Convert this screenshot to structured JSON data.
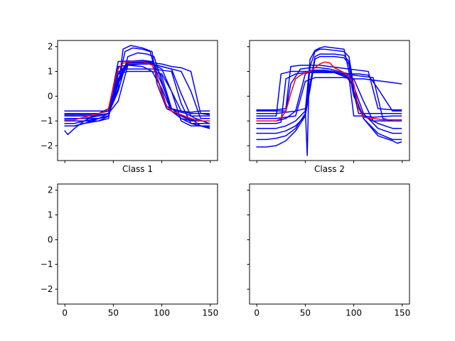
{
  "chart_data": [
    {
      "type": "line",
      "xlabel": "Class 1",
      "ylabel": "",
      "title": "",
      "xlim": [
        -7.5,
        157.5
      ],
      "ylim": [
        -2.6,
        2.25
      ],
      "x_ticks": [
        0,
        50,
        100,
        150
      ],
      "x_ticklabels": [],
      "y_ticks": [
        -2,
        -1,
        0,
        1,
        2
      ],
      "y_ticklabels": [
        "−2",
        "−1",
        "0",
        "1",
        "2"
      ],
      "grid": false,
      "colors": {
        "samples": "#0000ff",
        "mean": "#ff0000"
      },
      "series": [
        {
          "role": "sample",
          "color": "#0000ff",
          "x": [
            0,
            10,
            20,
            35,
            45,
            55,
            65,
            80,
            90,
            100,
            110,
            120,
            130,
            140,
            149
          ],
          "y": [
            -0.6,
            -0.6,
            -0.6,
            -0.6,
            -0.6,
            1.4,
            1.42,
            1.4,
            1.38,
            0.8,
            -0.5,
            -0.6,
            -0.65,
            -0.6,
            -0.6
          ]
        },
        {
          "role": "sample",
          "color": "#0000ff",
          "x": [
            0,
            10,
            20,
            35,
            45,
            55,
            65,
            80,
            90,
            100,
            110,
            120,
            130,
            140,
            149
          ],
          "y": [
            -0.7,
            -0.7,
            -0.7,
            -0.7,
            -0.6,
            0.6,
            1.38,
            1.38,
            1.3,
            1.1,
            0.2,
            -0.6,
            -0.7,
            -0.7,
            -0.7
          ]
        },
        {
          "role": "sample",
          "color": "#0000ff",
          "x": [
            0,
            10,
            20,
            35,
            45,
            55,
            65,
            80,
            90,
            100,
            110,
            120,
            130,
            140,
            149
          ],
          "y": [
            -0.8,
            -0.8,
            -0.8,
            -0.8,
            -0.7,
            -0.2,
            1.25,
            1.3,
            1.3,
            1.2,
            1.1,
            0.1,
            -0.8,
            -0.8,
            -0.8
          ]
        },
        {
          "role": "sample",
          "color": "#0000ff",
          "x": [
            0,
            10,
            20,
            35,
            45,
            55,
            65,
            80,
            90,
            100,
            110,
            120,
            130,
            140,
            149
          ],
          "y": [
            -0.9,
            -0.9,
            -0.9,
            -0.9,
            -0.8,
            0.5,
            1.3,
            1.3,
            1.3,
            1.2,
            1.1,
            1.0,
            0.2,
            -0.9,
            -0.9
          ]
        },
        {
          "role": "sample",
          "color": "#0000ff",
          "x": [
            0,
            10,
            20,
            35,
            45,
            55,
            65,
            80,
            90,
            100,
            110,
            120,
            130,
            140,
            149
          ],
          "y": [
            -1.0,
            -1.0,
            -1.0,
            -1.0,
            -0.9,
            1.2,
            1.25,
            1.2,
            1.0,
            0.3,
            -0.6,
            -0.9,
            -1.0,
            -1.0,
            -1.0
          ]
        },
        {
          "role": "sample",
          "color": "#0000ff",
          "x": [
            0,
            10,
            20,
            35,
            45,
            55,
            65,
            80,
            90,
            100,
            110,
            120,
            130,
            140,
            149
          ],
          "y": [
            -1.1,
            -1.1,
            -1.0,
            -1.0,
            -0.8,
            1.0,
            1.1,
            1.1,
            1.1,
            1.05,
            1.0,
            -0.3,
            -1.1,
            -1.1,
            -1.1
          ]
        },
        {
          "role": "sample",
          "color": "#0000ff",
          "x": [
            0,
            10,
            20,
            35,
            45,
            55,
            65,
            80,
            90,
            100,
            110,
            120,
            130,
            140,
            149
          ],
          "y": [
            -1.2,
            -1.2,
            -1.1,
            -1.0,
            -0.8,
            0.9,
            1.0,
            1.0,
            1.0,
            0.9,
            0.2,
            -1.0,
            -1.2,
            -1.2,
            -1.2
          ]
        },
        {
          "role": "sample",
          "color": "#0000ff",
          "x": [
            0,
            3,
            10,
            20,
            35,
            45,
            55,
            65,
            80,
            90,
            100,
            110,
            120,
            130,
            140,
            149
          ],
          "y": [
            -1.4,
            -1.55,
            -1.3,
            -1.0,
            -0.7,
            -0.5,
            0.7,
            1.4,
            1.45,
            1.4,
            0.5,
            -0.5,
            -0.8,
            -0.9,
            -1.2,
            -1.3
          ]
        },
        {
          "role": "sample",
          "color": "#0000ff",
          "x": [
            0,
            10,
            20,
            35,
            45,
            55,
            62,
            70,
            80,
            88,
            95,
            105,
            115,
            125,
            135,
            149
          ],
          "y": [
            -1.0,
            -1.0,
            -1.0,
            -0.9,
            -0.8,
            0.5,
            1.8,
            1.95,
            1.9,
            1.8,
            0.8,
            -0.4,
            -0.6,
            -0.7,
            -0.9,
            -1.1
          ]
        },
        {
          "role": "sample",
          "color": "#0000ff",
          "x": [
            0,
            10,
            20,
            35,
            45,
            55,
            60,
            68,
            80,
            90,
            95,
            105,
            115,
            125,
            135,
            149
          ],
          "y": [
            -0.9,
            -0.9,
            -0.9,
            -0.8,
            -0.7,
            0.3,
            1.9,
            2.05,
            1.95,
            1.8,
            0.5,
            -0.5,
            -0.7,
            -0.9,
            -1.0,
            -1.0
          ]
        },
        {
          "role": "sample",
          "color": "#0000ff",
          "x": [
            0,
            10,
            20,
            35,
            45,
            55,
            65,
            75,
            85,
            92,
            100,
            110,
            120,
            130,
            140,
            149
          ],
          "y": [
            -1.2,
            -1.2,
            -1.1,
            -0.9,
            -0.7,
            0.2,
            1.6,
            1.75,
            1.7,
            1.6,
            0.6,
            -0.6,
            -0.9,
            -1.1,
            -1.2,
            -1.25
          ]
        },
        {
          "role": "sample",
          "color": "#0000ff",
          "x": [
            0,
            10,
            20,
            35,
            45,
            55,
            65,
            80,
            90,
            100,
            110,
            120,
            130,
            140,
            149
          ],
          "y": [
            -0.75,
            -0.75,
            -0.75,
            -0.75,
            -0.7,
            0.9,
            1.35,
            1.35,
            1.35,
            1.3,
            1.2,
            1.15,
            1.0,
            -0.7,
            -0.75
          ]
        },
        {
          "role": "mean",
          "color": "#ff0000",
          "x": [
            0,
            10,
            15,
            20,
            30,
            40,
            45,
            50,
            55,
            60,
            65,
            70,
            80,
            90,
            95,
            100,
            105,
            110,
            120,
            130,
            140,
            149
          ],
          "y": [
            -0.95,
            -0.95,
            -0.9,
            -0.85,
            -0.75,
            -0.65,
            -0.5,
            0.4,
            1.1,
            1.33,
            1.38,
            1.4,
            1.4,
            1.25,
            0.8,
            0.1,
            -0.4,
            -0.6,
            -0.75,
            -0.9,
            -1.0,
            -1.0
          ]
        }
      ]
    },
    {
      "type": "line",
      "xlabel": "Class 2",
      "ylabel": "",
      "title": "",
      "xlim": [
        -7.5,
        157.5
      ],
      "ylim": [
        -2.6,
        2.25
      ],
      "x_ticks": [
        0,
        50,
        100,
        150
      ],
      "x_ticklabels": [],
      "y_ticks": [
        -2,
        -1,
        0,
        1,
        2
      ],
      "y_ticklabels": [],
      "grid": false,
      "colors": {
        "samples": "#0000ff",
        "mean": "#ff0000"
      },
      "series": [
        {
          "role": "sample",
          "color": "#0000ff",
          "x": [
            0,
            10,
            20,
            30,
            35,
            45,
            55,
            65,
            75,
            85,
            95,
            105,
            115,
            125,
            140,
            149
          ],
          "y": [
            -0.55,
            -0.55,
            -0.55,
            -0.5,
            1.2,
            1.25,
            1.25,
            1.25,
            1.2,
            1.15,
            1.1,
            1.05,
            1.0,
            -0.5,
            -0.55,
            -0.55
          ]
        },
        {
          "role": "sample",
          "color": "#0000ff",
          "x": [
            0,
            10,
            20,
            30,
            35,
            45,
            55,
            65,
            75,
            85,
            95,
            105,
            115,
            125,
            140,
            149
          ],
          "y": [
            -0.6,
            -0.6,
            -0.6,
            -0.6,
            0.5,
            1.1,
            1.15,
            1.15,
            1.1,
            1.0,
            0.9,
            0.9,
            0.85,
            0.3,
            -0.6,
            -0.6
          ]
        },
        {
          "role": "sample",
          "color": "#0000ff",
          "x": [
            0,
            10,
            20,
            25,
            35,
            45,
            55,
            65,
            75,
            85,
            95,
            100,
            110,
            120,
            140,
            149
          ],
          "y": [
            -0.8,
            -0.8,
            -0.8,
            0.9,
            1.0,
            1.0,
            1.0,
            1.0,
            1.0,
            0.9,
            0.8,
            -0.8,
            -0.8,
            -0.85,
            -0.8,
            -0.8
          ]
        },
        {
          "role": "sample",
          "color": "#0000ff",
          "x": [
            0,
            10,
            20,
            30,
            40,
            50,
            52,
            54,
            56,
            60,
            70,
            80,
            90,
            98,
            105,
            120,
            140,
            149
          ],
          "y": [
            -0.7,
            -0.7,
            -0.7,
            -0.65,
            -0.6,
            -0.5,
            -2.4,
            0.9,
            1.05,
            1.05,
            1.05,
            1.0,
            0.9,
            0.5,
            -0.7,
            -0.7,
            -0.7,
            -0.7
          ]
        },
        {
          "role": "sample",
          "color": "#0000ff",
          "x": [
            0,
            10,
            20,
            30,
            40,
            50,
            55,
            60,
            70,
            80,
            90,
            100,
            110,
            120,
            140,
            149
          ],
          "y": [
            -1.0,
            -1.0,
            -1.0,
            -0.9,
            -0.6,
            0.9,
            1.0,
            1.0,
            1.0,
            0.95,
            0.8,
            0.7,
            -0.2,
            -1.0,
            -1.0,
            -1.0
          ]
        },
        {
          "role": "sample",
          "color": "#0000ff",
          "x": [
            0,
            10,
            20,
            30,
            40,
            50,
            55,
            60,
            65,
            70,
            80,
            90,
            95,
            100,
            110,
            125,
            140,
            149
          ],
          "y": [
            -1.3,
            -1.3,
            -1.3,
            -1.2,
            -1.0,
            -0.6,
            1.5,
            1.85,
            1.95,
            2.0,
            1.95,
            1.9,
            1.0,
            0.0,
            -0.8,
            -1.1,
            -1.3,
            -1.3
          ]
        },
        {
          "role": "sample",
          "color": "#0000ff",
          "x": [
            0,
            10,
            20,
            30,
            40,
            50,
            55,
            60,
            65,
            70,
            80,
            90,
            95,
            100,
            110,
            125,
            140,
            149
          ],
          "y": [
            -1.5,
            -1.5,
            -1.5,
            -1.4,
            -1.2,
            -0.8,
            1.2,
            1.8,
            1.9,
            1.9,
            1.85,
            1.8,
            1.6,
            0.4,
            -0.7,
            -1.3,
            -1.5,
            -1.5
          ]
        },
        {
          "role": "sample",
          "color": "#0000ff",
          "x": [
            0,
            10,
            20,
            30,
            40,
            50,
            55,
            60,
            65,
            70,
            80,
            90,
            95,
            100,
            110,
            125,
            140,
            149
          ],
          "y": [
            -1.75,
            -1.75,
            -1.7,
            -1.6,
            -1.3,
            -0.7,
            0.5,
            1.6,
            1.7,
            1.7,
            1.7,
            1.65,
            1.4,
            0.2,
            -0.9,
            -1.5,
            -1.75,
            -1.75
          ]
        },
        {
          "role": "sample",
          "color": "#0000ff",
          "x": [
            0,
            10,
            20,
            30,
            40,
            50,
            55,
            60,
            65,
            70,
            80,
            90,
            95,
            100,
            110,
            125,
            140,
            145,
            149
          ],
          "y": [
            -2.05,
            -2.05,
            -2.0,
            -1.8,
            -1.4,
            -0.8,
            0.3,
            1.5,
            1.6,
            1.6,
            1.6,
            1.55,
            1.3,
            0.1,
            -0.9,
            -1.6,
            -1.8,
            -1.9,
            -1.85
          ]
        },
        {
          "role": "sample",
          "color": "#0000ff",
          "x": [
            0,
            10,
            20,
            25,
            30,
            40,
            50,
            60,
            70,
            80,
            90,
            100,
            110,
            120,
            130,
            140,
            149
          ],
          "y": [
            -1.1,
            -1.1,
            -1.1,
            -1.05,
            0.7,
            0.9,
            0.95,
            0.95,
            0.95,
            0.95,
            0.9,
            0.85,
            0.8,
            0.75,
            -0.9,
            -1.0,
            -1.0
          ]
        },
        {
          "role": "sample",
          "color": "#0000ff",
          "x": [
            0,
            10,
            20,
            30,
            40,
            50,
            60,
            70,
            80,
            90,
            100,
            110,
            120,
            130,
            140,
            149
          ],
          "y": [
            -0.9,
            -0.9,
            -0.9,
            -0.85,
            -0.8,
            0.6,
            0.75,
            0.75,
            0.75,
            0.75,
            0.7,
            0.7,
            0.65,
            0.6,
            0.55,
            0.5
          ]
        },
        {
          "role": "mean",
          "color": "#ff0000",
          "x": [
            0,
            10,
            20,
            25,
            30,
            35,
            40,
            45,
            50,
            55,
            60,
            65,
            70,
            75,
            80,
            90,
            95,
            100,
            102,
            105,
            110,
            120,
            130,
            140,
            149
          ],
          "y": [
            -1.0,
            -1.0,
            -1.0,
            -0.9,
            -0.6,
            0.1,
            0.7,
            0.85,
            0.95,
            1.0,
            1.15,
            1.3,
            1.38,
            1.35,
            1.15,
            0.95,
            0.8,
            0.5,
            0.1,
            -0.5,
            -0.85,
            -0.9,
            -0.95,
            -0.95,
            -0.95
          ]
        }
      ]
    },
    {
      "type": "line",
      "xlabel": "",
      "ylabel": "",
      "title": "",
      "xlim": [
        -7.5,
        157.5
      ],
      "ylim": [
        -2.6,
        2.25
      ],
      "x_ticks": [
        0,
        50,
        100,
        150
      ],
      "x_ticklabels": [
        "0",
        "50",
        "100",
        "150"
      ],
      "y_ticks": [
        -2,
        -1,
        0,
        1,
        2
      ],
      "y_ticklabels": [
        "−2",
        "−1",
        "0",
        "1",
        "2"
      ],
      "grid": false,
      "series": []
    },
    {
      "type": "line",
      "xlabel": "",
      "ylabel": "",
      "title": "",
      "xlim": [
        -7.5,
        157.5
      ],
      "ylim": [
        -2.6,
        2.25
      ],
      "x_ticks": [
        0,
        50,
        100,
        150
      ],
      "x_ticklabels": [
        "0",
        "50",
        "100",
        "150"
      ],
      "y_ticks": [
        -2,
        -1,
        0,
        1,
        2
      ],
      "y_ticklabels": [],
      "grid": false,
      "series": []
    }
  ]
}
